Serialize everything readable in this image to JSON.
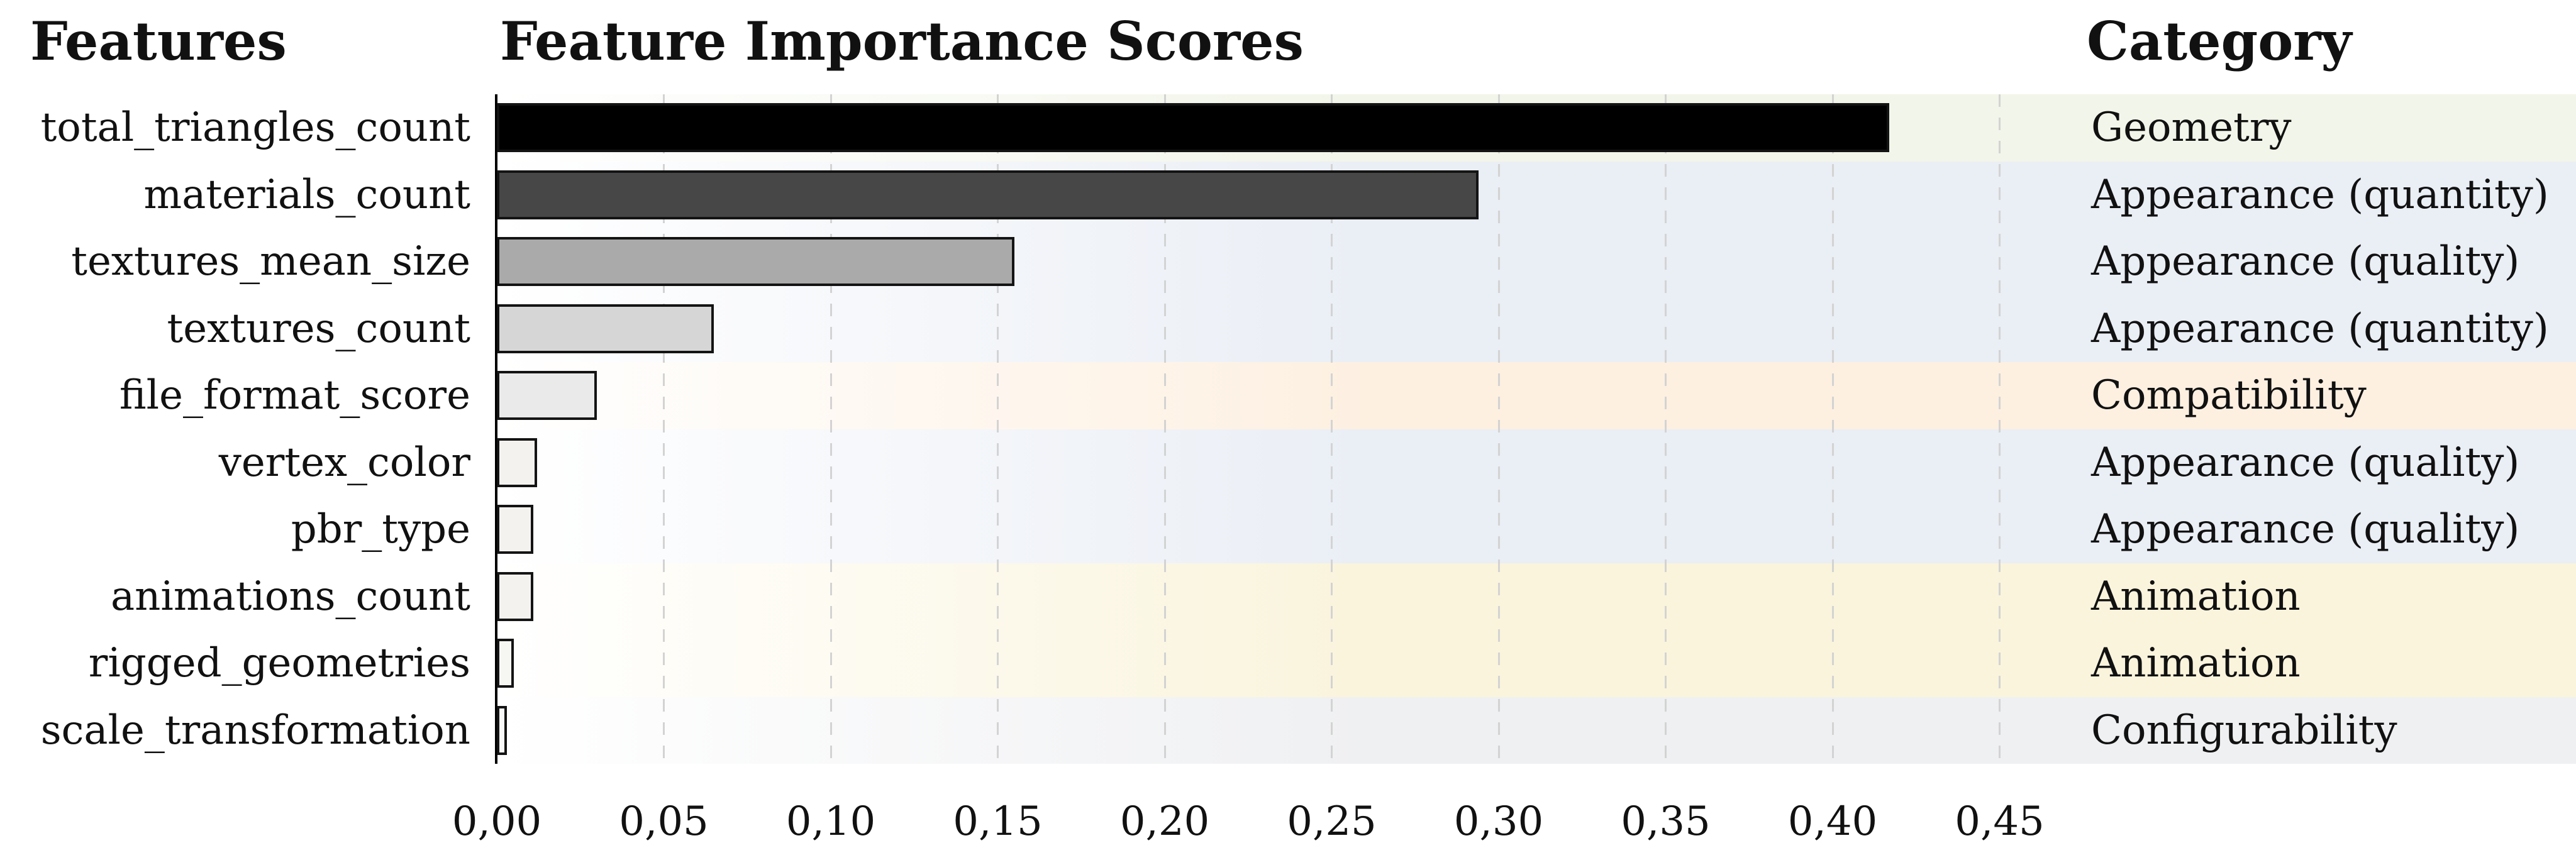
{
  "page": {
    "background_color": "#ffffff",
    "text_color": "#111111"
  },
  "headers": {
    "features": "Features",
    "title": "Feature Importance Scores",
    "category": "Category"
  },
  "chart_data": {
    "type": "bar",
    "orientation": "horizontal",
    "title": "Feature Importance Scores",
    "xlabel": "",
    "ylabel": "",
    "xlim": [
      0,
      0.4667
    ],
    "grid": "vertical dashed gridlines every 0.05 from 0.05 to 0.45",
    "legend_position": "none",
    "axis_spine_color": "#000000",
    "gridline_color": "#d3d3d3",
    "bar_border_color": "#141414",
    "decimal_separator": ",",
    "x_ticks": [
      {
        "value": 0.0,
        "label": "0,00"
      },
      {
        "value": 0.05,
        "label": "0,05"
      },
      {
        "value": 0.1,
        "label": "0,10"
      },
      {
        "value": 0.15,
        "label": "0,15"
      },
      {
        "value": 0.2,
        "label": "0,20"
      },
      {
        "value": 0.25,
        "label": "0,25"
      },
      {
        "value": 0.3,
        "label": "0,30"
      },
      {
        "value": 0.35,
        "label": "0,35"
      },
      {
        "value": 0.4,
        "label": "0,40"
      },
      {
        "value": 0.45,
        "label": "0,45"
      }
    ],
    "categories": [
      "total_triangles_count",
      "materials_count",
      "textures_mean_size",
      "textures_count",
      "file_format_score",
      "vertex_color",
      "pbr_type",
      "animations_count",
      "rigged_geometries",
      "scale_transformation"
    ],
    "values": [
      0.417,
      0.294,
      0.155,
      0.065,
      0.03,
      0.012,
      0.011,
      0.011,
      0.005,
      0.003
    ],
    "rows": [
      {
        "feature": "total_triangles_count",
        "value": 0.417,
        "category": "Geometry",
        "bar_color": "#000000",
        "band_color": "#f2f5e9"
      },
      {
        "feature": "materials_count",
        "value": 0.294,
        "category": "Appearance (quantity)",
        "bar_color": "#474747",
        "band_color": "#eaeef5"
      },
      {
        "feature": "textures_mean_size",
        "value": 0.155,
        "category": "Appearance (quality)",
        "bar_color": "#aaaaaa",
        "band_color": "#eaeef5"
      },
      {
        "feature": "textures_count",
        "value": 0.065,
        "category": "Appearance (quantity)",
        "bar_color": "#d6d6d6",
        "band_color": "#eaeef5"
      },
      {
        "feature": "file_format_score",
        "value": 0.03,
        "category": "Compatibility",
        "bar_color": "#eaeaea",
        "band_color": "#fdf0e1"
      },
      {
        "feature": "vertex_color",
        "value": 0.012,
        "category": "Appearance (quality)",
        "bar_color": "#f3f2ef",
        "band_color": "#eaeef5"
      },
      {
        "feature": "pbr_type",
        "value": 0.011,
        "category": "Appearance (quality)",
        "bar_color": "#f3f2ef",
        "band_color": "#eaeef5"
      },
      {
        "feature": "animations_count",
        "value": 0.011,
        "category": "Animation",
        "bar_color": "#f3f2ef",
        "band_color": "#faf4dc"
      },
      {
        "feature": "rigged_geometries",
        "value": 0.005,
        "category": "Animation",
        "bar_color": "#f6f6f3",
        "band_color": "#faf4dc"
      },
      {
        "feature": "scale_transformation",
        "value": 0.003,
        "category": "Configurability",
        "bar_color": "#f9f9f7",
        "band_color": "#eff0f2"
      }
    ]
  }
}
